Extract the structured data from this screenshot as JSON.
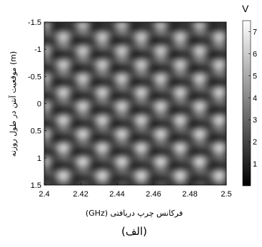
{
  "chart_data": {
    "type": "heatmap",
    "title": "",
    "xlabel": "فرکانس چرپ دریافتی (GHz)",
    "ylabel": "موقعیت آنتن در طول روزنه (m)",
    "colorbar_label": "V",
    "caption": "(الف)",
    "xlim": [
      2.4,
      2.5
    ],
    "ylim": [
      1.5,
      -1.5
    ],
    "x_ticks": [
      "2.4",
      "2.42",
      "2.44",
      "2.46",
      "2.48",
      "2.5"
    ],
    "y_ticks": [
      "-1.5",
      "-1",
      "-0.5",
      "0",
      "0.5",
      "1",
      "1.5"
    ],
    "colorbar_range": [
      0,
      7.5
    ],
    "colorbar_ticks": [
      "7",
      "6",
      "5",
      "4",
      "3",
      "2",
      "1"
    ],
    "colormap": "gray",
    "grid": false
  }
}
